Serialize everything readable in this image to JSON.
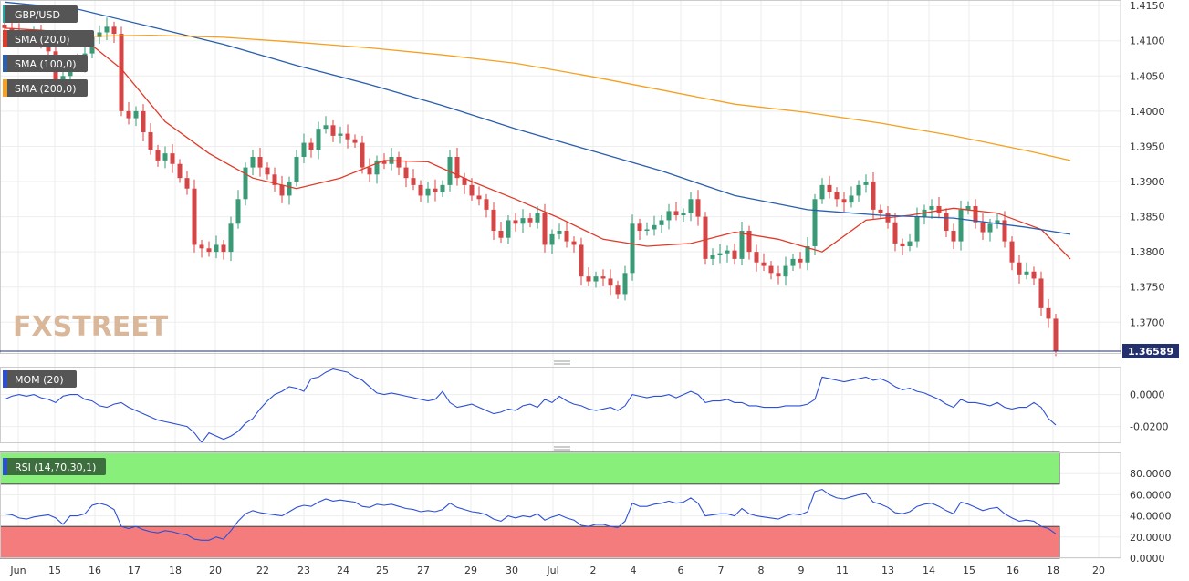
{
  "chart_data": {
    "type": "line",
    "symbol": "GBP/USD",
    "watermark": {
      "part1": "FX",
      "part2": "STREET"
    },
    "x_labels": [
      "Jun",
      "15",
      "16",
      "17",
      "18",
      "20",
      "22",
      "23",
      "24",
      "25",
      "27",
      "29",
      "30",
      "Jul",
      "2",
      "4",
      "6",
      "7",
      "8",
      "9",
      "11",
      "13",
      "14",
      "15",
      "16",
      "18",
      "20"
    ],
    "price_panel": {
      "ylim": [
        1.3655,
        1.4158
      ],
      "ticks": [
        "1.4150",
        "1.4100",
        "1.4050",
        "1.4000",
        "1.3950",
        "1.3900",
        "1.3850",
        "1.3800",
        "1.3750",
        "1.3700"
      ],
      "tick_values": [
        1.415,
        1.41,
        1.405,
        1.4,
        1.395,
        1.39,
        1.385,
        1.38,
        1.375,
        1.37
      ],
      "last_price": "1.36589",
      "last_price_value": 1.36589,
      "up_color": "#3a9a76",
      "down_color": "#d64545",
      "candles_close": [
        1.4118,
        1.4112,
        1.4108,
        1.4105,
        1.411,
        1.4098,
        1.4085,
        1.4045,
        1.405,
        1.4072,
        1.4068,
        1.4082,
        1.4105,
        1.4112,
        1.412,
        1.411,
        1.4,
        1.399,
        1.4,
        1.397,
        1.3945,
        1.393,
        1.394,
        1.3925,
        1.3905,
        1.389,
        1.381,
        1.3805,
        1.38,
        1.381,
        1.38,
        1.384,
        1.3875,
        1.392,
        1.3935,
        1.392,
        1.391,
        1.3895,
        1.388,
        1.39,
        1.3935,
        1.3955,
        1.3945,
        1.3975,
        1.398,
        1.3965,
        1.3968,
        1.396,
        1.3955,
        1.392,
        1.391,
        1.393,
        1.3925,
        1.3935,
        1.392,
        1.3905,
        1.3895,
        1.388,
        1.389,
        1.3885,
        1.3895,
        1.3935,
        1.3905,
        1.3895,
        1.388,
        1.3875,
        1.386,
        1.383,
        1.382,
        1.3845,
        1.384,
        1.3848,
        1.3842,
        1.3855,
        1.381,
        1.3825,
        1.383,
        1.3815,
        1.381,
        1.3765,
        1.3758,
        1.3765,
        1.3762,
        1.3752,
        1.374,
        1.377,
        1.384,
        1.383,
        1.3832,
        1.3838,
        1.3845,
        1.3858,
        1.3852,
        1.3855,
        1.3875,
        1.385,
        1.379,
        1.3795,
        1.3798,
        1.3802,
        1.379,
        1.383,
        1.38,
        1.3785,
        1.378,
        1.377,
        1.3765,
        1.378,
        1.379,
        1.3785,
        1.3808,
        1.3875,
        1.3895,
        1.3885,
        1.3875,
        1.387,
        1.388,
        1.3895,
        1.39,
        1.386,
        1.3855,
        1.3842,
        1.3812,
        1.3808,
        1.3815,
        1.385,
        1.386,
        1.3865,
        1.3855,
        1.383,
        1.3815,
        1.386,
        1.3865,
        1.3842,
        1.3828,
        1.384,
        1.3845,
        1.3815,
        1.3785,
        1.3768,
        1.3772,
        1.3762,
        1.372,
        1.3705,
        1.36589
      ],
      "series": [
        {
          "name": "SMA (20,0)",
          "color": "#e03a2a",
          "x": [
            0,
            5,
            10,
            16,
            22,
            28,
            34,
            40,
            46,
            52,
            58,
            64,
            70,
            76,
            82,
            88,
            94,
            100,
            106,
            112,
            118,
            124,
            130,
            136,
            142,
            146
          ],
          "values": [
            1.4118,
            1.4115,
            1.411,
            1.406,
            1.3985,
            1.394,
            1.3905,
            1.389,
            1.3905,
            1.393,
            1.3928,
            1.39,
            1.3875,
            1.3848,
            1.3818,
            1.3808,
            1.3812,
            1.3828,
            1.3818,
            1.38,
            1.3845,
            1.3852,
            1.3862,
            1.3855,
            1.3832,
            1.379
          ]
        },
        {
          "name": "SMA (100,0)",
          "color": "#2a5fad",
          "x": [
            0,
            10,
            20,
            30,
            40,
            50,
            60,
            70,
            80,
            90,
            100,
            110,
            120,
            130,
            140,
            146
          ],
          "values": [
            1.4155,
            1.4145,
            1.412,
            1.4095,
            1.4065,
            1.4038,
            1.4008,
            1.3975,
            1.3945,
            1.3915,
            1.388,
            1.386,
            1.3852,
            1.3848,
            1.3835,
            1.3825
          ]
        },
        {
          "name": "SMA (200,0)",
          "color": "#f5a020",
          "x": [
            0,
            10,
            20,
            30,
            40,
            50,
            60,
            70,
            80,
            90,
            100,
            110,
            120,
            130,
            140,
            146
          ],
          "values": [
            1.4105,
            1.4106,
            1.4108,
            1.4105,
            1.4098,
            1.409,
            1.408,
            1.4068,
            1.405,
            1.403,
            1.401,
            1.3998,
            1.3983,
            1.3965,
            1.3944,
            1.393
          ]
        }
      ]
    },
    "mom_panel": {
      "label": "MOM (20)",
      "color": "#2b4fd6",
      "ylim": [
        -0.0305,
        0.0175
      ],
      "ticks": [
        "0.0000",
        "-0.0200"
      ],
      "tick_values": [
        0.0,
        -0.02
      ],
      "values": [
        -0.003,
        -0.001,
        0.0,
        -0.001,
        0.0,
        -0.002,
        -0.003,
        -0.005,
        -0.001,
        0.0,
        0.0,
        -0.003,
        -0.004,
        -0.007,
        -0.008,
        -0.006,
        -0.005,
        -0.008,
        -0.01,
        -0.012,
        -0.014,
        -0.016,
        -0.017,
        -0.018,
        -0.019,
        -0.02,
        -0.024,
        -0.03,
        -0.024,
        -0.026,
        -0.028,
        -0.026,
        -0.023,
        -0.018,
        -0.015,
        -0.009,
        -0.004,
        0.0,
        0.002,
        0.005,
        0.004,
        0.002,
        0.01,
        0.011,
        0.014,
        0.016,
        0.015,
        0.014,
        0.011,
        0.009,
        0.005,
        0.001,
        0.0,
        0.001,
        0.0,
        -0.001,
        -0.002,
        -0.003,
        -0.004,
        -0.003,
        0.002,
        -0.005,
        -0.008,
        -0.007,
        -0.006,
        -0.008,
        -0.01,
        -0.012,
        -0.011,
        -0.009,
        -0.01,
        -0.007,
        -0.006,
        -0.008,
        -0.003,
        -0.005,
        -0.001,
        -0.004,
        -0.006,
        -0.007,
        -0.009,
        -0.01,
        -0.009,
        -0.008,
        -0.01,
        -0.007,
        0.0,
        -0.001,
        -0.002,
        -0.001,
        -0.001,
        0.0,
        -0.002,
        0.0,
        0.002,
        0.0,
        -0.005,
        -0.004,
        -0.004,
        -0.003,
        -0.005,
        -0.005,
        -0.007,
        -0.007,
        -0.008,
        -0.008,
        -0.008,
        -0.007,
        -0.007,
        -0.007,
        -0.006,
        -0.003,
        0.011,
        0.01,
        0.009,
        0.008,
        0.009,
        0.01,
        0.011,
        0.009,
        0.01,
        0.008,
        0.005,
        0.003,
        0.004,
        0.002,
        0.001,
        -0.001,
        -0.003,
        -0.006,
        -0.008,
        -0.003,
        -0.005,
        -0.005,
        -0.006,
        -0.007,
        -0.005,
        -0.008,
        -0.009,
        -0.008,
        -0.008,
        -0.005,
        -0.008,
        -0.015,
        -0.019
      ]
    },
    "rsi_panel": {
      "label": "RSI (14,70,30,1)",
      "color": "#2b4fd6",
      "ylim": [
        0,
        100
      ],
      "ticks": [
        "80.0000",
        "60.0000",
        "40.0000",
        "20.0000",
        "0.0000"
      ],
      "tick_values": [
        80,
        60,
        40,
        20,
        0
      ],
      "overbought": 70,
      "oversold": 30,
      "overbought_color": "#88f07a",
      "oversold_color": "#f47c7c",
      "values": [
        42,
        41,
        38,
        37,
        39,
        40,
        41,
        38,
        32,
        40,
        40,
        42,
        50,
        52,
        50,
        46,
        30,
        28,
        30,
        27,
        25,
        24,
        26,
        25,
        23,
        22,
        18,
        17,
        17,
        20,
        18,
        26,
        35,
        42,
        45,
        43,
        42,
        41,
        40,
        44,
        48,
        50,
        49,
        53,
        56,
        54,
        55,
        54,
        53,
        49,
        48,
        51,
        50,
        51,
        49,
        47,
        46,
        44,
        45,
        44,
        46,
        52,
        48,
        46,
        44,
        43,
        41,
        37,
        35,
        40,
        38,
        40,
        39,
        42,
        36,
        39,
        41,
        38,
        36,
        31,
        30,
        32,
        32,
        30,
        29,
        35,
        52,
        49,
        49,
        51,
        52,
        54,
        52,
        53,
        57,
        52,
        40,
        41,
        42,
        42,
        40,
        47,
        42,
        40,
        39,
        38,
        37,
        40,
        42,
        41,
        44,
        63,
        65,
        60,
        57,
        56,
        58,
        60,
        61,
        53,
        51,
        48,
        43,
        42,
        44,
        49,
        51,
        52,
        49,
        45,
        42,
        53,
        51,
        48,
        45,
        47,
        48,
        42,
        38,
        35,
        36,
        35,
        30,
        28,
        23
      ]
    }
  }
}
